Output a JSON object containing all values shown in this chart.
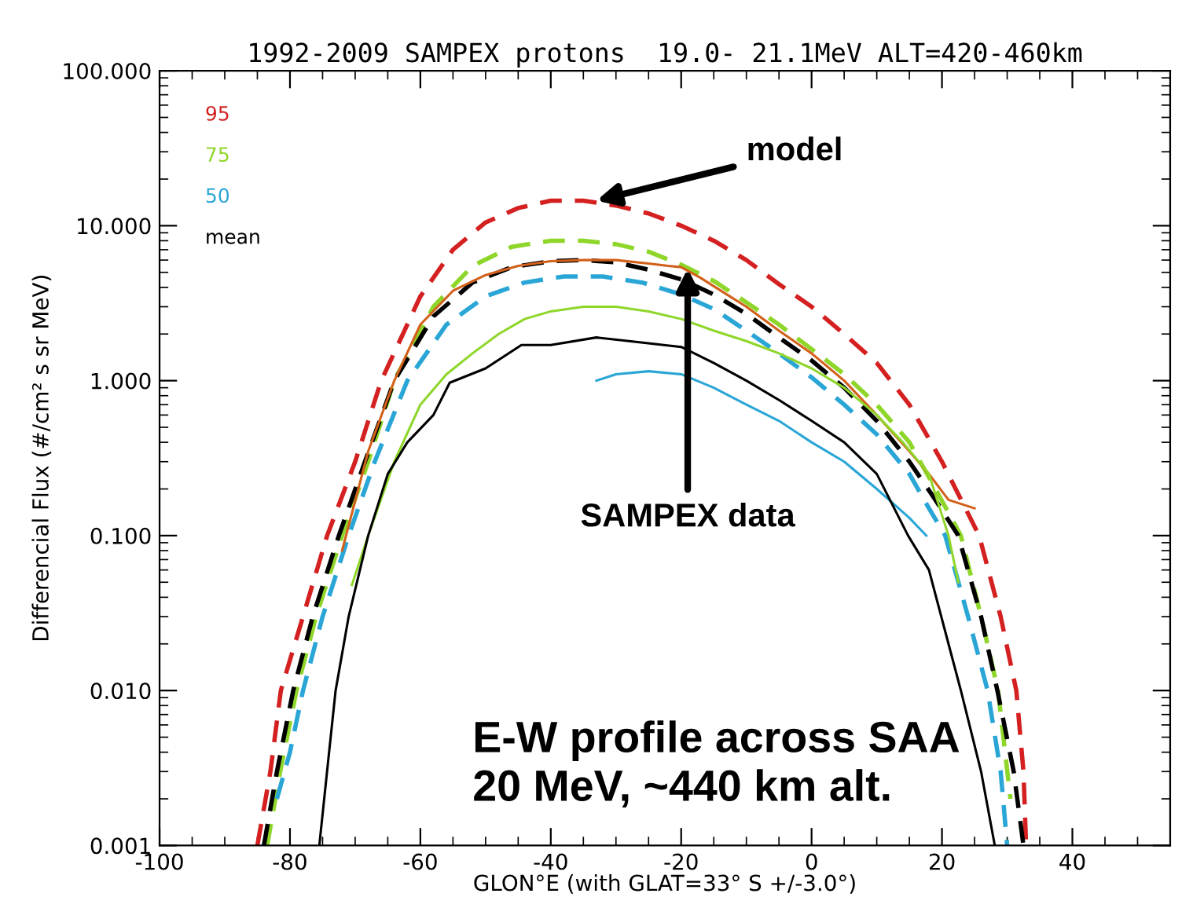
{
  "chart_data": {
    "type": "line",
    "title": "1992-2009 SAMPEX protons  19.0- 21.1MeV ALT=420-460km",
    "xlabel": "GLON°E (with GLAT=33° S +/-3.0°)",
    "ylabel": "Differencial Flux (#/cm² s sr MeV)",
    "log": "y",
    "xlim": [
      -100,
      55
    ],
    "xticks": [
      -100,
      -80,
      -60,
      -40,
      -20,
      0,
      20,
      40
    ],
    "ylim": [
      0.001,
      100
    ],
    "yticks": [
      {
        "value": 0.001,
        "label": "0.001"
      },
      {
        "value": 0.01,
        "label": "0.010"
      },
      {
        "value": 0.1,
        "label": "0.100"
      },
      {
        "value": 1,
        "label": "1.000"
      },
      {
        "value": 10,
        "label": "10.000"
      },
      {
        "value": 100,
        "label": "100.000"
      }
    ],
    "grid": false,
    "legend": "top left",
    "series": [
      {
        "name": "95",
        "color": "#d42020",
        "line_style": "dashed",
        "x": [
          -85,
          -83,
          -81.4,
          -78,
          -74.3,
          -70,
          -66,
          -60,
          -55,
          -50,
          -45,
          -40,
          -35,
          -30,
          -25,
          -20,
          -15,
          -10,
          -5,
          0,
          5,
          10,
          15,
          20,
          25.7,
          29,
          31.4,
          32.5,
          32.9
        ],
        "values": [
          0.001,
          0.003,
          0.01,
          0.03,
          0.1,
          0.3,
          1,
          3.5,
          7,
          10.5,
          13,
          14.5,
          14.5,
          13.5,
          12,
          10,
          8,
          6,
          4.2,
          3,
          2,
          1.3,
          0.7,
          0.3,
          0.1,
          0.03,
          0.01,
          0.003,
          0.001
        ]
      },
      {
        "name": "75",
        "color": "#8fd62a",
        "line_style": "dashed",
        "x": [
          -83.5,
          -81.5,
          -79,
          -76,
          -72,
          -68,
          -64,
          -58,
          -52,
          -46,
          -40,
          -35,
          -30,
          -25,
          -20,
          -15,
          -10,
          -5,
          0,
          5,
          10,
          15,
          19,
          22.9,
          26,
          28.6,
          30.5
        ],
        "values": [
          0.001,
          0.003,
          0.01,
          0.03,
          0.1,
          0.3,
          1,
          3,
          5.5,
          7.3,
          8,
          8,
          7.6,
          6.8,
          5.6,
          4.4,
          3.2,
          2.3,
          1.6,
          1.1,
          0.7,
          0.4,
          0.2,
          0.1,
          0.03,
          0.01,
          0.002
        ]
      },
      {
        "name": "50",
        "color": "#2aa6d6",
        "line_style": "dashed",
        "x": [
          -82,
          -80,
          -78,
          -75,
          -71,
          -67,
          -62,
          -56,
          -50,
          -44,
          -38,
          -32,
          -26,
          -20,
          -15,
          -10,
          -5,
          0,
          5,
          10,
          15,
          18,
          20.5,
          24,
          27,
          29,
          30
        ],
        "values": [
          0.002,
          0.004,
          0.01,
          0.03,
          0.1,
          0.3,
          1,
          2.3,
          3.5,
          4.3,
          4.7,
          4.7,
          4.3,
          3.6,
          2.9,
          2.1,
          1.5,
          1.05,
          0.7,
          0.45,
          0.25,
          0.15,
          0.1,
          0.03,
          0.01,
          0.003,
          0.001
        ]
      },
      {
        "name": "mean",
        "color": "#000000",
        "line_style": "dashed",
        "x": [
          -84,
          -82,
          -79.5,
          -76.5,
          -72.5,
          -68.5,
          -64,
          -58,
          -52,
          -46,
          -40,
          -35,
          -30,
          -25,
          -20,
          -15,
          -10,
          -5,
          0,
          5,
          10,
          15,
          19,
          22.5,
          26,
          28.5,
          31,
          32.5
        ],
        "values": [
          0.001,
          0.003,
          0.01,
          0.03,
          0.1,
          0.3,
          1,
          2.6,
          4.3,
          5.4,
          5.9,
          6,
          5.8,
          5.2,
          4.5,
          3.6,
          2.7,
          1.9,
          1.35,
          0.9,
          0.55,
          0.3,
          0.17,
          0.1,
          0.03,
          0.01,
          0.003,
          0.001
        ]
      },
      {
        "color": "#d2601a",
        "line_style": "solid",
        "x": [
          -72,
          -71.4,
          -68,
          -64,
          -60,
          -55,
          -50,
          -45,
          -40,
          -35,
          -30,
          -25,
          -22,
          -20,
          -17,
          -13,
          -10,
          -5,
          0,
          5,
          10,
          15,
          18,
          21,
          25
        ],
        "values": [
          0.08,
          0.1,
          0.35,
          1,
          2.3,
          3.8,
          4.8,
          5.5,
          5.9,
          6,
          6,
          5.7,
          5.5,
          5.4,
          4.6,
          3.6,
          3,
          2.1,
          1.5,
          1.0,
          0.6,
          0.35,
          0.25,
          0.17,
          0.15
        ]
      },
      {
        "color": "#8fd62a",
        "line_style": "solid",
        "x": [
          -70.5,
          -68,
          -64,
          -60,
          -56,
          -52,
          -48,
          -44,
          -40,
          -35,
          -30,
          -25,
          -20,
          -15,
          -10,
          -5,
          0,
          5,
          10,
          14,
          18,
          21,
          22.5
        ],
        "values": [
          0.048,
          0.1,
          0.3,
          0.7,
          1.1,
          1.5,
          2,
          2.5,
          2.8,
          3,
          3,
          2.8,
          2.5,
          2.1,
          1.8,
          1.5,
          1.2,
          0.9,
          0.6,
          0.4,
          0.25,
          0.1,
          0.05
        ]
      },
      {
        "color": "#2aa6d6",
        "line_style": "solid",
        "x": [
          -33,
          -30,
          -25,
          -20,
          -15,
          -10,
          -5,
          0,
          5,
          10,
          15,
          17.6
        ],
        "values": [
          1.0,
          1.1,
          1.15,
          1.1,
          0.9,
          0.7,
          0.55,
          0.4,
          0.3,
          0.2,
          0.13,
          0.1
        ]
      },
      {
        "color": "#000000",
        "line_style": "solid",
        "x": [
          -75.5,
          -74,
          -73,
          -71,
          -68,
          -65,
          -62,
          -58,
          -55.5,
          -50,
          -44.5,
          -40,
          -33,
          -28,
          -20,
          -15,
          -10,
          -5,
          0,
          5,
          10,
          14.8,
          18,
          21,
          22.9,
          26,
          28.1
        ],
        "values": [
          0.001,
          0.004,
          0.01,
          0.03,
          0.1,
          0.25,
          0.4,
          0.6,
          0.97,
          1.2,
          1.7,
          1.7,
          1.9,
          1.8,
          1.65,
          1.3,
          1.0,
          0.75,
          0.55,
          0.4,
          0.25,
          0.1,
          0.06,
          0.02,
          0.01,
          0.003,
          0.001
        ]
      }
    ],
    "annotations": [
      {
        "text": "model",
        "x": -33,
        "y": 14.5
      },
      {
        "text": "SAMPEX data",
        "x": -19,
        "y": 5.3
      },
      "E-W profile across SAA\n20 MeV, ~440 km alt."
    ]
  }
}
